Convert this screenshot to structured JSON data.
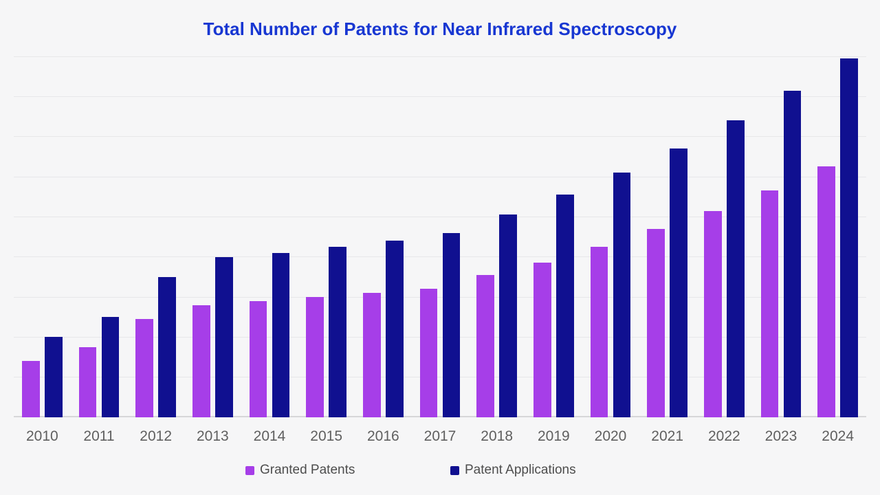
{
  "chart_data": {
    "type": "bar",
    "title": "Total Number of Patents for Near Infrared Spectroscopy",
    "categories": [
      "2010",
      "2011",
      "2012",
      "2013",
      "2014",
      "2015",
      "2016",
      "2017",
      "2018",
      "2019",
      "2020",
      "2021",
      "2022",
      "2023",
      "2024"
    ],
    "series": [
      {
        "name": "Granted Patents",
        "color": "#a63ee8",
        "values": [
          140,
          175,
          245,
          280,
          290,
          300,
          310,
          320,
          355,
          385,
          425,
          470,
          515,
          565,
          625
        ]
      },
      {
        "name": "Patent Applications",
        "color": "#101090",
        "values": [
          200,
          250,
          350,
          400,
          410,
          425,
          440,
          460,
          505,
          555,
          610,
          670,
          740,
          815,
          895
        ]
      }
    ],
    "xlabel": "",
    "ylabel": "",
    "ylim": [
      0,
      900
    ],
    "gridline_interval": 100,
    "grid": true,
    "y_axis_labels_visible": false,
    "legend_position": "bottom",
    "colors": {
      "background": "#f6f6f7",
      "title": "#1837d2",
      "axis_label": "#5f5f5f",
      "legend_text": "#4d4d4d",
      "gridline": "#e7e7e9",
      "baseline": "#d6d6d8"
    }
  }
}
